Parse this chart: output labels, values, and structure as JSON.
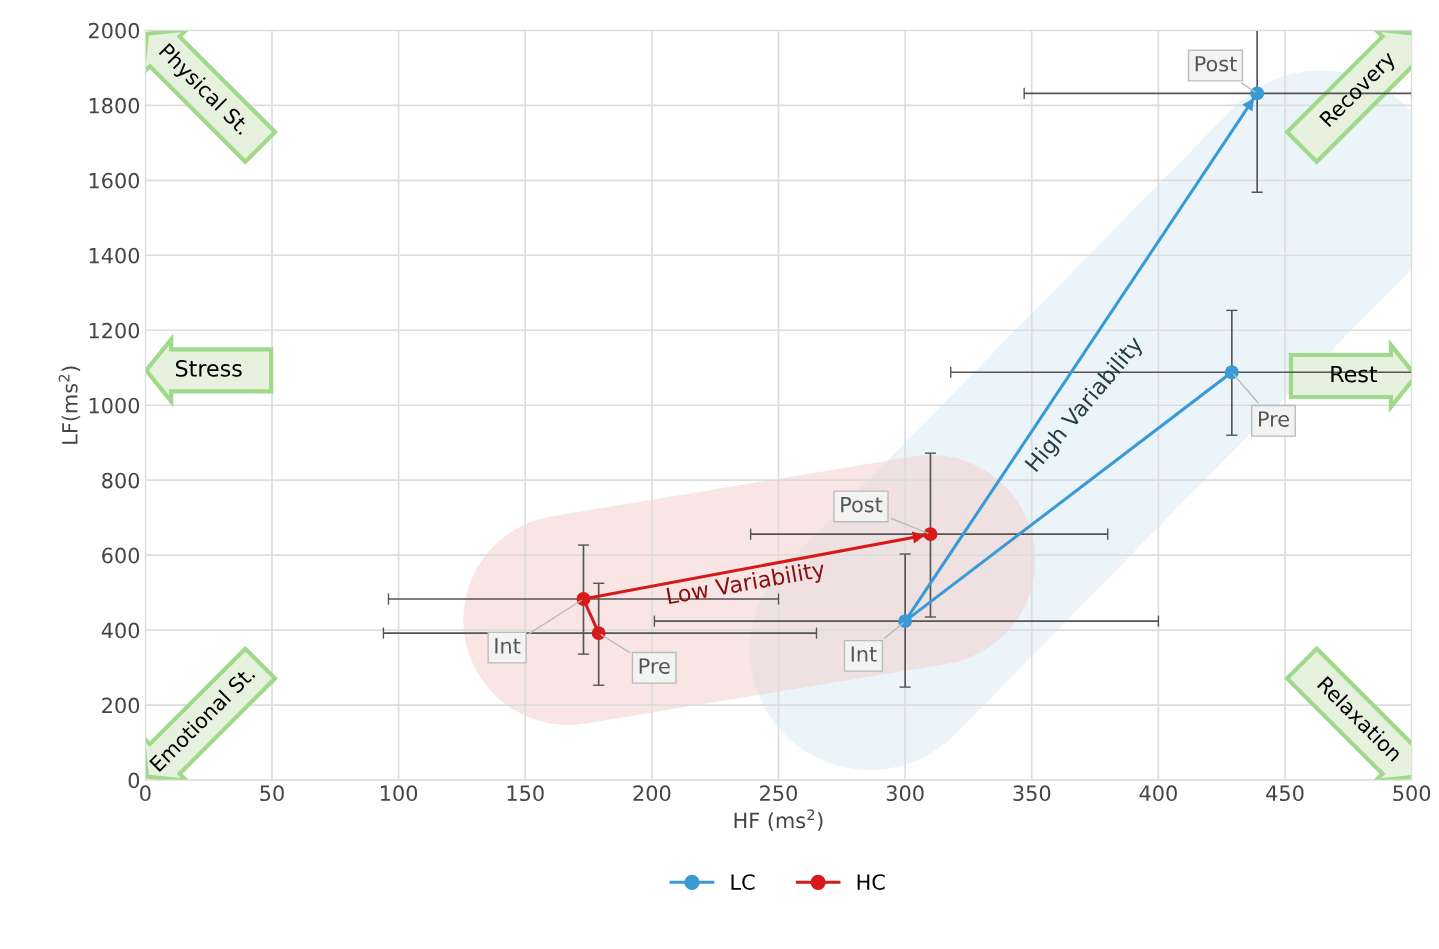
{
  "chart_data": {
    "type": "line",
    "xlabel": "HF (ms$^{2}$)",
    "ylabel": "LF(ms$^{2}$)",
    "xlim": [
      0,
      500
    ],
    "xticks": [
      0,
      50,
      100,
      150,
      200,
      250,
      300,
      350,
      400,
      450,
      500
    ],
    "ylim": [
      0,
      2000
    ],
    "yticks": [
      0,
      200,
      400,
      600,
      800,
      1000,
      1200,
      1400,
      1600,
      1800,
      2000
    ],
    "grid": true,
    "legend": "bottom",
    "marker": "circle",
    "series": [
      {
        "name": "LC",
        "color": "#3a9ad6",
        "x": [
          429,
          300,
          439
        ],
        "values": [
          1088,
          424,
          1832
        ],
        "xerrors": [
          [
            318,
            500
          ],
          [
            201,
            400
          ],
          [
            347,
            500
          ]
        ],
        "errors": [
          [
            920,
            1253
          ],
          [
            248,
            603
          ],
          [
            1568,
            2000
          ]
        ]
      },
      {
        "name": "HC",
        "color": "#d61a1a",
        "x": [
          179,
          173,
          310
        ],
        "values": [
          392,
          483,
          656
        ],
        "xerrors": [
          [
            94,
            265
          ],
          [
            96,
            250
          ],
          [
            239,
            380
          ]
        ],
        "errors": [
          [
            253,
            525
          ],
          [
            336,
            627
          ],
          [
            435,
            872
          ]
        ]
      }
    ],
    "annotations": [
      {
        "text": "Pre",
        "x": 429,
        "y": 1088
      },
      {
        "text": "Int",
        "x": 300,
        "y": 424
      },
      {
        "text": "Post",
        "x": 439,
        "y": 1832
      },
      {
        "text": "Pre",
        "x": 179,
        "y": 392
      },
      {
        "text": "Int",
        "x": 173,
        "y": 483
      },
      {
        "text": "Post",
        "x": 310,
        "y": 656
      },
      "High Variability",
      "Low Variability",
      "Physical St.",
      "Recovery",
      "Stress",
      "Rest",
      "Emotional St.",
      "Relaxation"
    ]
  }
}
